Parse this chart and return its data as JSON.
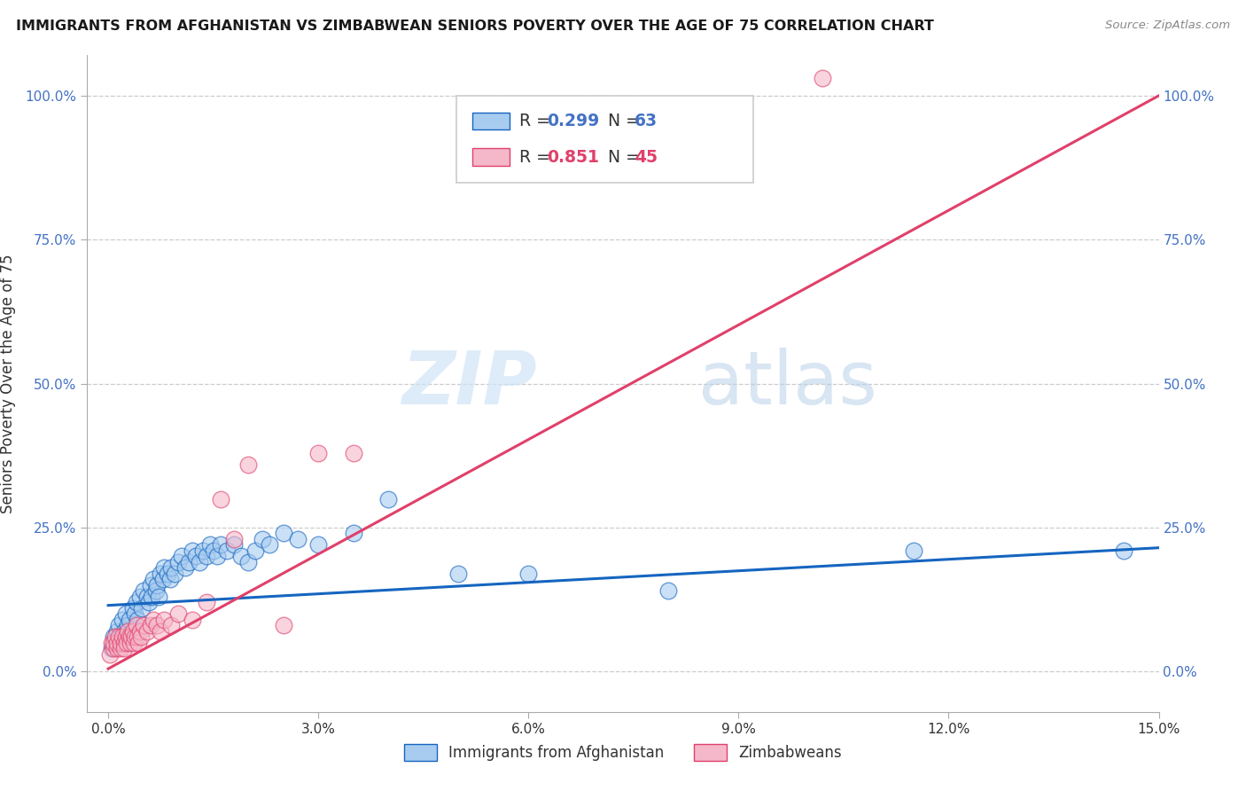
{
  "title": "IMMIGRANTS FROM AFGHANISTAN VS ZIMBABWEAN SENIORS POVERTY OVER THE AGE OF 75 CORRELATION CHART",
  "source": "Source: ZipAtlas.com",
  "ylabel": "Seniors Poverty Over the Age of 75",
  "xlabel_ticks": [
    "0.0%",
    "3.0%",
    "6.0%",
    "9.0%",
    "12.0%",
    "15.0%"
  ],
  "xlabel_vals": [
    0.0,
    3.0,
    6.0,
    9.0,
    12.0,
    15.0
  ],
  "ylabel_ticks": [
    "0.0%",
    "25.0%",
    "50.0%",
    "75.0%",
    "100.0%"
  ],
  "ylabel_vals": [
    0.0,
    25.0,
    50.0,
    75.0,
    100.0
  ],
  "xmax": 15.0,
  "ymax": 107.0,
  "ymin": -7.0,
  "xmin": -0.3,
  "afghanistan_R": 0.299,
  "afghanistan_N": 63,
  "zimbabwe_R": 0.851,
  "zimbabwe_N": 45,
  "afghanistan_color": "#A8CCF0",
  "zimbabwe_color": "#F5B8CB",
  "afghanistan_line_color": "#1565C0",
  "zimbabwe_line_color": "#E0406A",
  "watermark_zip": "ZIP",
  "watermark_atlas": "atlas",
  "legend_label_1": "Immigrants from Afghanistan",
  "legend_label_2": "Zimbabweans",
  "afghanistan_x": [
    0.05,
    0.08,
    0.1,
    0.12,
    0.15,
    0.18,
    0.2,
    0.22,
    0.25,
    0.28,
    0.3,
    0.35,
    0.38,
    0.4,
    0.42,
    0.45,
    0.48,
    0.5,
    0.55,
    0.58,
    0.6,
    0.62,
    0.65,
    0.68,
    0.7,
    0.72,
    0.75,
    0.78,
    0.8,
    0.85,
    0.88,
    0.9,
    0.95,
    1.0,
    1.05,
    1.1,
    1.15,
    1.2,
    1.25,
    1.3,
    1.35,
    1.4,
    1.45,
    1.5,
    1.55,
    1.6,
    1.7,
    1.8,
    1.9,
    2.0,
    2.1,
    2.2,
    2.3,
    2.5,
    2.7,
    3.0,
    3.5,
    4.0,
    5.0,
    6.0,
    8.0,
    11.5,
    14.5
  ],
  "afghanistan_y": [
    4,
    6,
    5,
    7,
    8,
    6,
    9,
    7,
    10,
    8,
    9,
    11,
    10,
    12,
    9,
    13,
    11,
    14,
    13,
    12,
    15,
    13,
    16,
    14,
    15,
    13,
    17,
    16,
    18,
    17,
    16,
    18,
    17,
    19,
    20,
    18,
    19,
    21,
    20,
    19,
    21,
    20,
    22,
    21,
    20,
    22,
    21,
    22,
    20,
    19,
    21,
    23,
    22,
    24,
    23,
    22,
    24,
    30,
    17,
    17,
    14,
    21,
    21
  ],
  "zimbabwe_x": [
    0.03,
    0.05,
    0.07,
    0.08,
    0.1,
    0.12,
    0.13,
    0.15,
    0.17,
    0.18,
    0.2,
    0.22,
    0.23,
    0.25,
    0.27,
    0.28,
    0.3,
    0.32,
    0.33,
    0.35,
    0.37,
    0.38,
    0.4,
    0.42,
    0.43,
    0.45,
    0.47,
    0.5,
    0.55,
    0.6,
    0.65,
    0.7,
    0.75,
    0.8,
    0.9,
    1.0,
    1.2,
    1.4,
    1.6,
    1.8,
    2.0,
    2.5,
    3.0,
    3.5,
    10.2
  ],
  "zimbabwe_y": [
    3,
    5,
    4,
    5,
    6,
    4,
    5,
    6,
    4,
    5,
    6,
    5,
    4,
    6,
    5,
    7,
    6,
    5,
    6,
    7,
    5,
    6,
    8,
    6,
    5,
    7,
    6,
    8,
    7,
    8,
    9,
    8,
    7,
    9,
    8,
    10,
    9,
    12,
    30,
    23,
    36,
    8,
    38,
    38,
    103
  ],
  "afg_line_x0": 0.0,
  "afg_line_y0": 11.5,
  "afg_line_x1": 15.0,
  "afg_line_y1": 21.5,
  "zim_line_x0": 0.0,
  "zim_line_y0": 0.5,
  "zim_line_x1": 15.0,
  "zim_line_y1": 100.0
}
